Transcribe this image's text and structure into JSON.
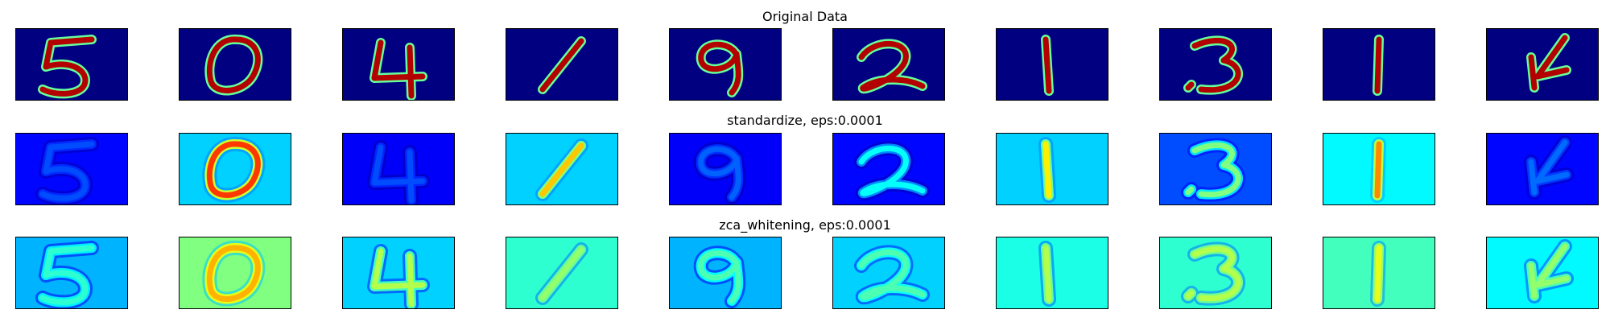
{
  "chart_data": {
    "type": "heatmap",
    "colormap": "jet",
    "digits": [
      "5",
      "0",
      "4",
      "1",
      "9",
      "2",
      "1",
      "3",
      "1",
      "4"
    ],
    "rows": [
      {
        "title": "Original Data",
        "background_level": 0.0,
        "stroke_level": 0.95,
        "halo_level": 0.0
      },
      {
        "title": "standardize, eps:0.0001",
        "background_levels": [
          0.13,
          0.33,
          0.12,
          0.33,
          0.12,
          0.13,
          0.33,
          0.2,
          0.37,
          0.13
        ],
        "stroke_levels": [
          0.2,
          0.82,
          0.2,
          0.68,
          0.22,
          0.38,
          0.64,
          0.5,
          0.74,
          0.23
        ],
        "halo_level": 0.08
      },
      {
        "title": "zca_whitening, eps:0.0001",
        "background_levels": [
          0.3,
          0.5,
          0.33,
          0.42,
          0.3,
          0.33,
          0.4,
          0.42,
          0.44,
          0.37
        ],
        "stroke_levels": [
          0.42,
          0.7,
          0.55,
          0.52,
          0.45,
          0.45,
          0.55,
          0.55,
          0.6,
          0.52
        ],
        "halo_level": 0.18
      }
    ]
  }
}
